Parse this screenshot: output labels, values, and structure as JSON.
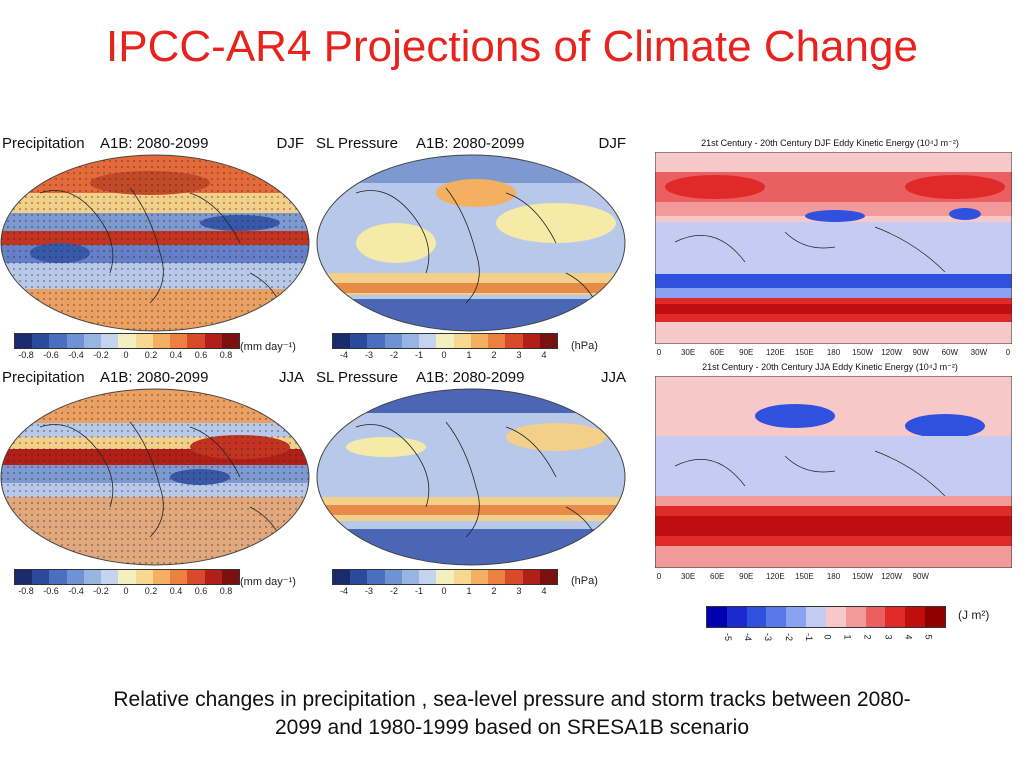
{
  "title": "IPCC-AR4 Projections of Climate Change",
  "caption_line1": "Relative changes in precipitation , sea-level pressure and storm tracks between 2080-",
  "caption_line2": "2099 and 1980-1999 based on SRESA1B scenario",
  "panels": {
    "precip_djf": {
      "var": "Precipitation",
      "scenario": "A1B: 2080-2099",
      "season": "DJF"
    },
    "slp_djf": {
      "var": "SL Pressure",
      "scenario": "A1B: 2080-2099",
      "season": "DJF"
    },
    "precip_jja": {
      "var": "Precipitation",
      "scenario": "A1B: 2080-2099",
      "season": "JJA"
    },
    "slp_jja": {
      "var": "SL Pressure",
      "scenario": "A1B: 2080-2099",
      "season": "JJA"
    }
  },
  "colorbars": {
    "precip": {
      "ticks": [
        "-0.8",
        "-0.6",
        "-0.4",
        "-0.2",
        "0",
        "0.2",
        "0.4",
        "0.6",
        "0.8"
      ],
      "unit": "(mm day⁻¹)",
      "colors": [
        "#1a2a6c",
        "#2c4a9a",
        "#4a6fc0",
        "#6e92d4",
        "#98b4e0",
        "#c4d4ee",
        "#f2f0c0",
        "#f8d890",
        "#f4b060",
        "#ec8040",
        "#d84a2a",
        "#b02018",
        "#7a1010"
      ]
    },
    "slp": {
      "ticks": [
        "-4",
        "-3",
        "-2",
        "-1",
        "0",
        "1",
        "2",
        "3",
        "4"
      ],
      "unit": "(hPa)",
      "colors": [
        "#1a2a6c",
        "#2c4a9a",
        "#4a6fc0",
        "#6e92d4",
        "#98b4e0",
        "#c4d4ee",
        "#f2f0c0",
        "#f8d890",
        "#f4b060",
        "#ec8040",
        "#d84a2a",
        "#b02018",
        "#7a1010"
      ]
    },
    "eke": {
      "ticks": [
        "-5",
        "-4",
        "-3",
        "-2",
        "-1",
        "0",
        "1",
        "2",
        "3",
        "4",
        "5"
      ],
      "unit": "(J m²)",
      "colors": [
        "#0000b0",
        "#1a2ad0",
        "#3050e0",
        "#5a78ea",
        "#8aa2f2",
        "#c4ccf4",
        "#f6c8c8",
        "#f29a9a",
        "#ea6060",
        "#e02a2a",
        "#c00e0e",
        "#900000"
      ]
    }
  },
  "eke": {
    "djf_title": "21st Century - 20th Century DJF Eddy Kinetic Energy (10⁴J m⁻²)",
    "jja_title": "21st Century - 20th Century JJA Eddy Kinetic Energy (10⁴J m⁻²)",
    "djf_axis": [
      "0",
      "30E",
      "60E",
      "90E",
      "120E",
      "150E",
      "180",
      "150W",
      "120W",
      "90W",
      "60W",
      "30W",
      "0"
    ],
    "jja_axis": [
      "0",
      "30E",
      "60E",
      "90E",
      "120E",
      "150E",
      "180",
      "150W",
      "120W",
      "90W"
    ]
  }
}
